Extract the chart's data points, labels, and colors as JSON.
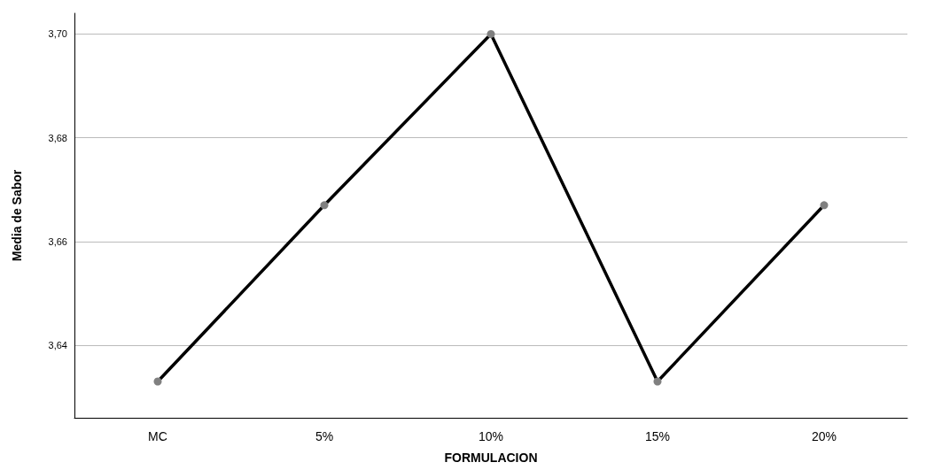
{
  "chart_data": {
    "type": "line",
    "xlabel": "FORMULACION",
    "ylabel": "Media de Sabor",
    "categories": [
      "MC",
      "5%",
      "10%",
      "15%",
      "20%"
    ],
    "series": [
      {
        "color": "#000000",
        "values": [
          3.633,
          3.667,
          3.7,
          3.633,
          3.667
        ]
      }
    ],
    "ylim": [
      3.626,
      3.704
    ],
    "yticks": [
      {
        "value": 3.64,
        "label": "3,64"
      },
      {
        "value": 3.66,
        "label": "3,66"
      },
      {
        "value": 3.68,
        "label": "3,68"
      },
      {
        "value": 3.7,
        "label": "3,70"
      }
    ],
    "grid": "y",
    "marker": "circle",
    "line_style": "solid"
  }
}
